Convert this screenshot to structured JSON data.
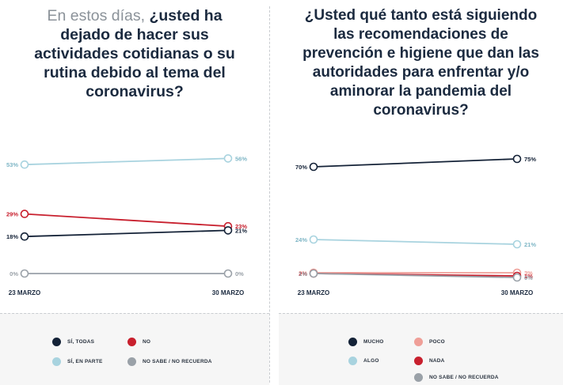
{
  "chart_data": [
    {
      "type": "line",
      "title_light": "En estos días,",
      "title_rest": "¿usted ha dejado de hacer sus actividades cotidianas o su rutina debido al tema del coronavirus?",
      "categories": [
        "23 MARZO",
        "30 MARZO"
      ],
      "ylim": [
        0,
        80
      ],
      "series": [
        {
          "name": "SÍ, EN PARTE",
          "color": "#a8d3df",
          "values": [
            53,
            56
          ],
          "labels": [
            "53%",
            "56%"
          ]
        },
        {
          "name": "NO",
          "color": "#c8202e",
          "values": [
            29,
            23
          ],
          "labels": [
            "29%",
            "23%"
          ]
        },
        {
          "name": "SÍ, TODAS",
          "color": "#142237",
          "values": [
            18,
            21
          ],
          "labels": [
            "18%",
            "21%"
          ]
        },
        {
          "name": "NO SABE / NO RECUERDA",
          "color": "#9aa1a8",
          "values": [
            0,
            0
          ],
          "labels": [
            "0%",
            "0%"
          ]
        }
      ],
      "legend": [
        {
          "label": "SÍ, TODAS",
          "color": "#142237"
        },
        {
          "label": "NO",
          "color": "#c8202e"
        },
        {
          "label": "SÍ, EN PARTE",
          "color": "#a8d3df"
        },
        {
          "label": "NO SABE / NO RECUERDA",
          "color": "#9aa1a8"
        }
      ]
    },
    {
      "type": "line",
      "title": "¿Usted qué tanto está siguiendo las recomendaciones de prevención e higiene que dan las autoridades para enfrentar y/o aminorar la pandemia del coronavirus?",
      "categories": [
        "23 MARZO",
        "30 MARZO"
      ],
      "ylim": [
        0,
        80
      ],
      "series": [
        {
          "name": "MUCHO",
          "color": "#142237",
          "values": [
            70,
            75
          ],
          "labels": [
            "70%",
            "75%"
          ]
        },
        {
          "name": "ALGO",
          "color": "#a8d3df",
          "values": [
            24,
            21
          ],
          "labels": [
            "24%",
            "21%"
          ]
        },
        {
          "name": "POCO",
          "color": "#ef9f98",
          "values": [
            3,
            3
          ],
          "labels": [
            "3%",
            "3%"
          ]
        },
        {
          "name": "NADA",
          "color": "#c8202e",
          "values": [
            2,
            1
          ],
          "labels": [
            "2%",
            "1%"
          ]
        },
        {
          "name": "NO SABE / NO RECUERDA",
          "color": "#9aa1a8",
          "values": [
            1,
            0
          ],
          "labels": [
            "1%",
            "0%"
          ]
        }
      ],
      "legend": [
        {
          "label": "MUCHO",
          "color": "#142237"
        },
        {
          "label": "POCO",
          "color": "#ef9f98"
        },
        {
          "label": "ALGO",
          "color": "#a8d3df"
        },
        {
          "label": "NADA",
          "color": "#c8202e"
        },
        {
          "label": "NO SABE / NO RECUERDA",
          "color": "#9aa1a8"
        }
      ]
    }
  ]
}
